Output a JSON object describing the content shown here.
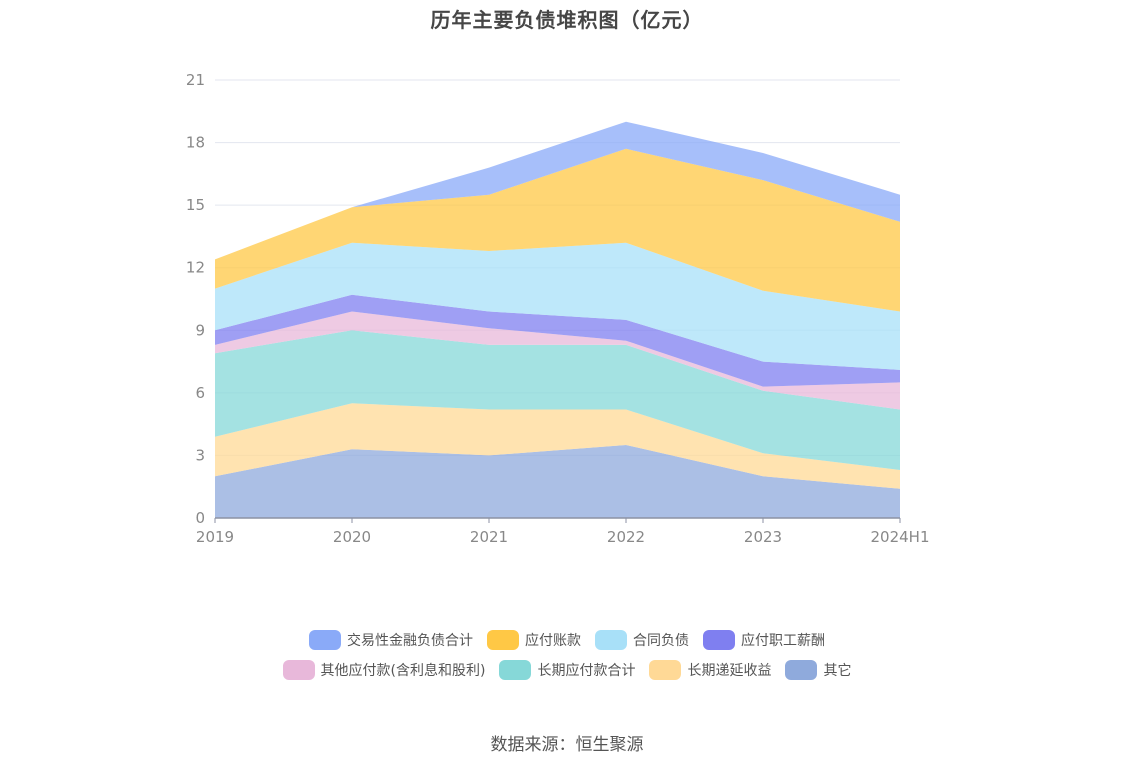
{
  "chart_data": {
    "type": "area",
    "stacked": true,
    "title": "历年主要负债堆积图（亿元）",
    "categories": [
      "2019",
      "2020",
      "2021",
      "2022",
      "2023",
      "2024H1"
    ],
    "ylim": [
      0,
      21
    ],
    "yticks": [
      0,
      3,
      6,
      9,
      12,
      15,
      18,
      21
    ],
    "grid": true,
    "legend_position": "bottom",
    "series": [
      {
        "name": "其它",
        "color": "#8FAADC",
        "values": [
          2.0,
          3.3,
          3.0,
          3.5,
          2.0,
          1.4
        ]
      },
      {
        "name": "长期递延收益",
        "color": "#FFD996",
        "values": [
          1.9,
          2.2,
          2.2,
          1.7,
          1.1,
          0.9
        ]
      },
      {
        "name": "长期应付款合计",
        "color": "#86D8D8",
        "values": [
          4.0,
          3.5,
          3.1,
          3.1,
          3.0,
          2.9
        ]
      },
      {
        "name": "其他应付款(含利息和股利)",
        "color": "#E8B8DA",
        "values": [
          0.4,
          0.9,
          0.8,
          0.2,
          0.2,
          1.3
        ]
      },
      {
        "name": "应付职工薪酬",
        "color": "#7F7FF0",
        "values": [
          0.7,
          0.8,
          0.8,
          1.0,
          1.2,
          0.6
        ]
      },
      {
        "name": "合同负债",
        "color": "#A8E0F8",
        "values": [
          2.0,
          2.5,
          2.9,
          3.7,
          3.4,
          2.8
        ]
      },
      {
        "name": "应付账款",
        "color": "#FFC845",
        "values": [
          1.4,
          1.7,
          2.7,
          4.5,
          5.3,
          4.3
        ]
      },
      {
        "name": "交易性金融负债合计",
        "color": "#8AAAF8",
        "values": [
          0.0,
          0.0,
          1.3,
          1.3,
          1.3,
          1.3
        ]
      }
    ]
  },
  "legend": {
    "row1": [
      "交易性金融负债合计",
      "应付账款",
      "合同负债",
      "应付职工薪酬"
    ],
    "row2": [
      "其他应付款(含利息和股利)",
      "长期应付款合计",
      "长期递延收益",
      "其它"
    ]
  },
  "colors": {
    "交易性金融负债合计": "#8AAAF8",
    "应付账款": "#FFC845",
    "合同负债": "#A8E0F8",
    "应付职工薪酬": "#7F7FF0",
    "其他应付款(含利息和股利)": "#E8B8DA",
    "长期应付款合计": "#86D8D8",
    "长期递延收益": "#FFD996",
    "其它": "#8FAADC"
  },
  "source": "数据来源：恒生聚源"
}
